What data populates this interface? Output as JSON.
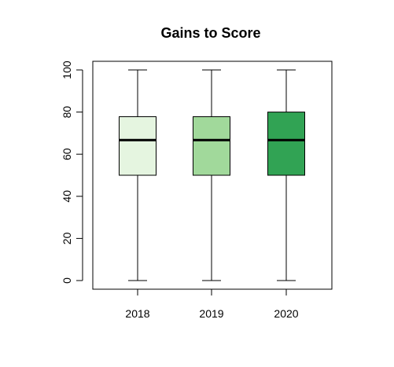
{
  "chart_data": {
    "type": "boxplot",
    "title": "Gains to Score",
    "xlabel": "",
    "ylabel": "",
    "categories": [
      "2018",
      "2019",
      "2020"
    ],
    "ylim": [
      0,
      100
    ],
    "y_ticks": [
      "0",
      "20",
      "40",
      "60",
      "80",
      "100"
    ],
    "grid": false,
    "legend": "none",
    "boxes": [
      {
        "label": "2018",
        "min": 0,
        "q1": 50,
        "median": 66.7,
        "q3": 77.8,
        "max": 100,
        "color": "#e5f5e0"
      },
      {
        "label": "2019",
        "min": 0,
        "q1": 50,
        "median": 66.7,
        "q3": 77.8,
        "max": 100,
        "color": "#a1d99b"
      },
      {
        "label": "2020",
        "min": 0,
        "q1": 50,
        "median": 66.7,
        "q3": 80,
        "max": 100,
        "color": "#31a354"
      }
    ]
  }
}
